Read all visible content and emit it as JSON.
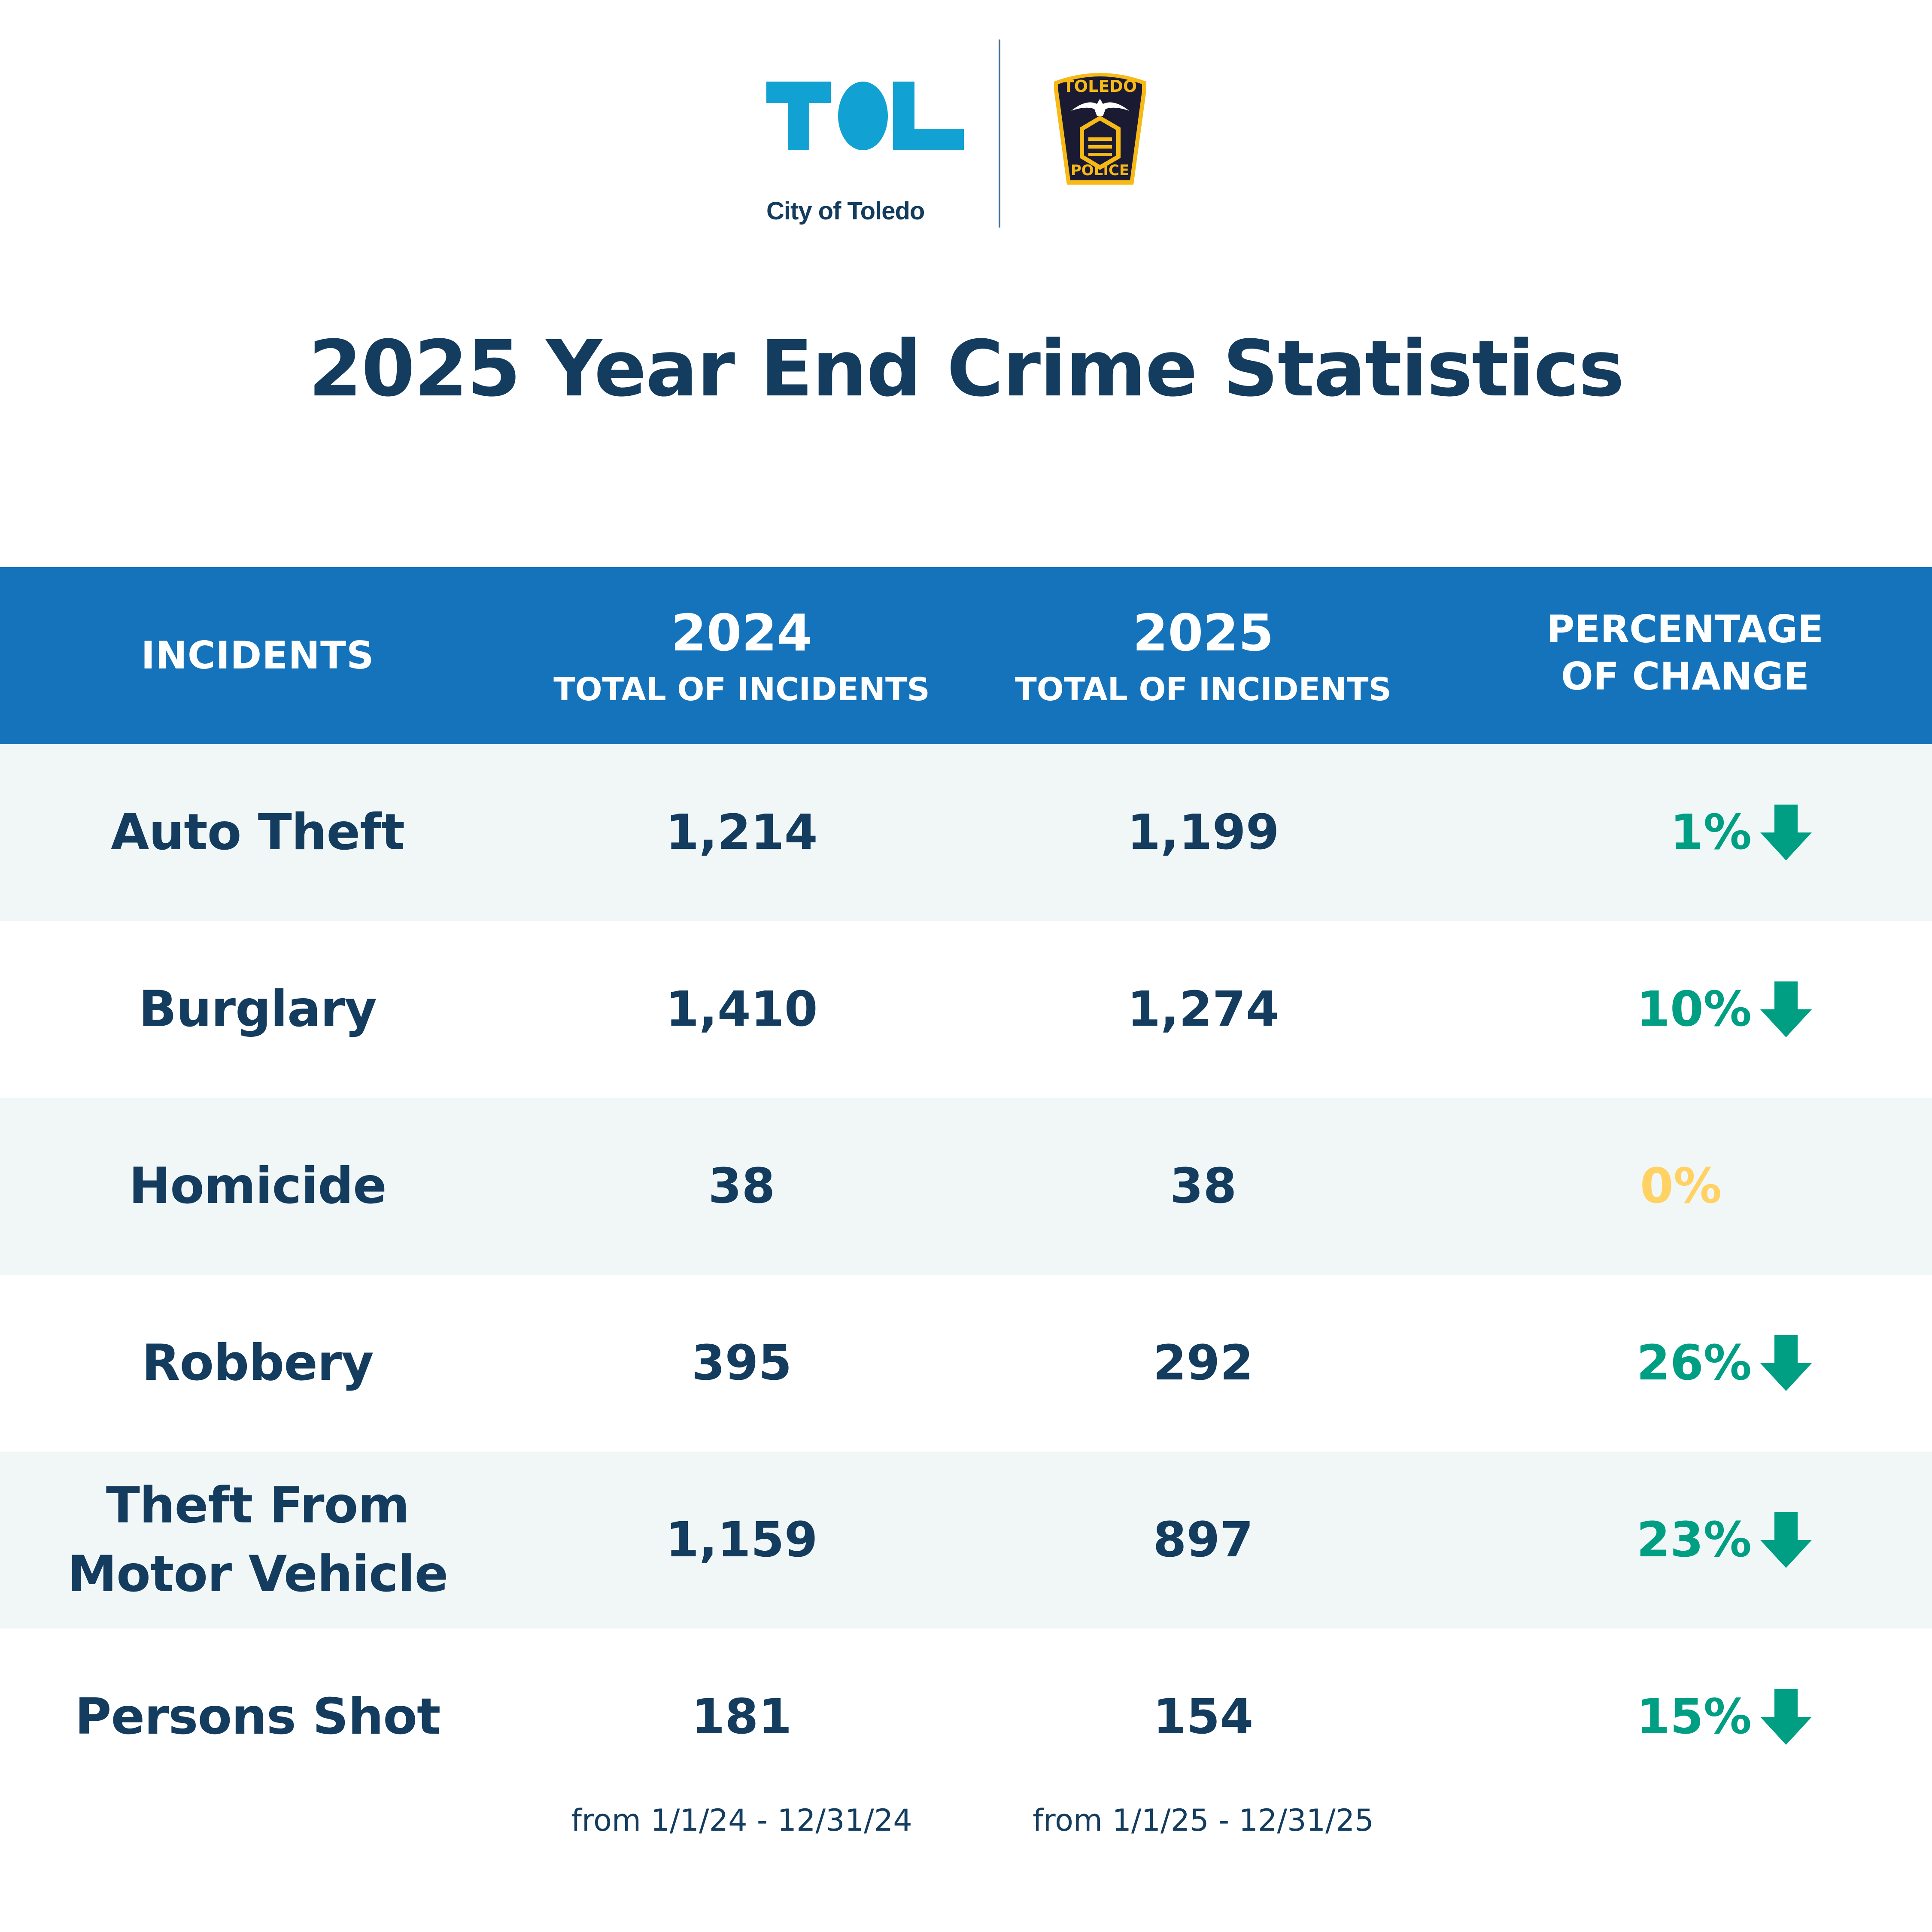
{
  "header": {
    "city_logo": {
      "letters": "TOL",
      "caption": "City of Toledo",
      "color": "#12a1d3"
    },
    "police_badge": {
      "top_text": "TOLEDO",
      "bottom_text": "POLICE",
      "fill": "#1a1a33",
      "accent": "#f7b916"
    }
  },
  "title": "2025 Year End Crime Statistics",
  "table": {
    "columns": {
      "incidents": "INCIDENTS",
      "year_2024": {
        "year": "2024",
        "sub": "TOTAL OF INCIDENTS"
      },
      "year_2025": {
        "year": "2025",
        "sub": "TOTAL OF INCIDENTS"
      },
      "change": {
        "line1": "PERCENTAGE",
        "line2": "OF CHANGE"
      }
    },
    "rows": [
      {
        "name": "Auto Theft",
        "v2024": "1,214",
        "v2025": "1,199",
        "change": "1%",
        "direction": "down"
      },
      {
        "name": "Burglary",
        "v2024": "1,410",
        "v2025": "1,274",
        "change": "10%",
        "direction": "down"
      },
      {
        "name": "Homicide",
        "v2024": "38",
        "v2025": "38",
        "change": "0%",
        "direction": "none"
      },
      {
        "name": "Robbery",
        "v2024": "395",
        "v2025": "292",
        "change": "26%",
        "direction": "down"
      },
      {
        "name_line1": "Theft From",
        "name_line2": "Motor Vehicle",
        "name": "Theft From Motor Vehicle",
        "v2024": "1,159",
        "v2025": "897",
        "change": "23%",
        "direction": "down"
      },
      {
        "name": "Persons Shot",
        "v2024": "181",
        "v2025": "154",
        "change": "15%",
        "direction": "down"
      }
    ]
  },
  "footnotes": {
    "range_2024": "from 1/1/24 - 12/31/24",
    "range_2025": "from 1/1/25 - 12/31/25"
  },
  "colors": {
    "header_bg": "#1573bb",
    "text_dark": "#133c5e",
    "decrease": "#009e83",
    "no_change": "#ffd263",
    "row_alt": "#f1f7f7"
  }
}
